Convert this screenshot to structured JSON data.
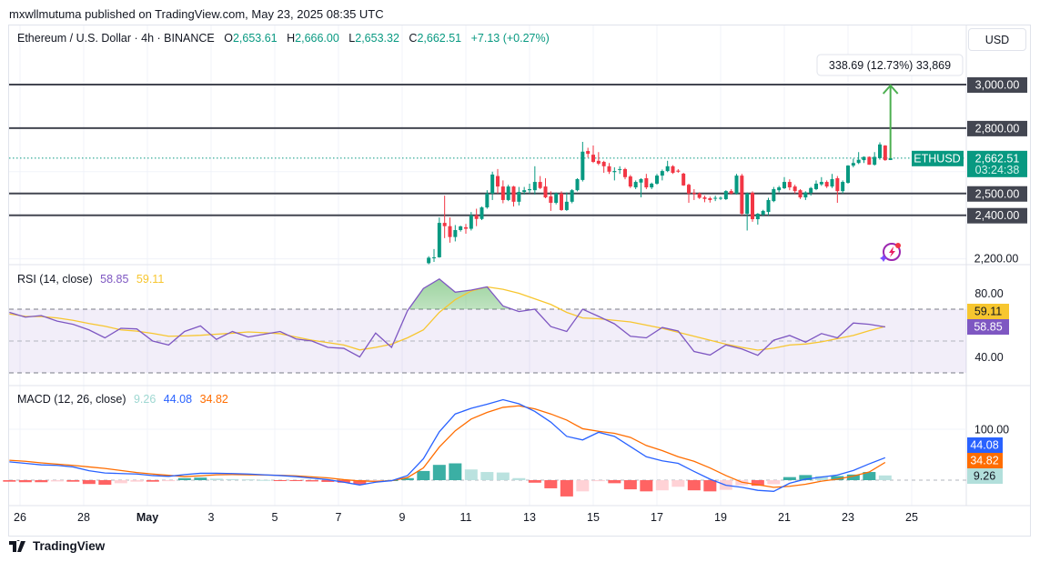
{
  "header": {
    "published": "mxwllmutuma published on TradingView.com, May 23, 2025 08:35 UTC",
    "symbol_desc": "Ethereum / U.S. Dollar · 4h · BINANCE",
    "o_label": "O",
    "o": "2,653.61",
    "h_label": "H",
    "h": "2,666.00",
    "l_label": "L",
    "l": "2,653.32",
    "c_label": "C",
    "c": "2,662.51",
    "change": "+7.13 (+0.27%)",
    "currency_button": "USD"
  },
  "footer": {
    "brand": "TradingView"
  },
  "colors": {
    "up": "#089981",
    "down": "#f23645",
    "level_line": "#434651",
    "rsi": "#7e57c2",
    "rsi_ma": "#f7c62f",
    "macd": "#2962ff",
    "signal": "#ff6d00",
    "hist_up_strong": "#26a69a",
    "hist_up_weak": "#b2dfdb",
    "hist_down_strong": "#ff5252",
    "hist_down_weak": "#ffcdd2"
  },
  "chart_data": {
    "type": "candlestick",
    "price_axis": {
      "ticks": [
        {
          "value": 2200,
          "label": "2,200.00"
        }
      ]
    },
    "horizontal_levels": [
      {
        "value": 3000,
        "label": "3,000.00"
      },
      {
        "value": 2800,
        "label": "2,800.00"
      },
      {
        "value": 2500,
        "label": "2,500.00"
      },
      {
        "value": 2400,
        "label": "2,400.00"
      }
    ],
    "last_price": {
      "value": 2662.51,
      "symbol": "ETHUSD",
      "label": "2,662.51",
      "countdown": "03:24:38"
    },
    "measure": {
      "from": 2661.31,
      "to": 3000,
      "label": "338.69 (12.73%) 33,869"
    },
    "x_ticks": [
      "26",
      "28",
      "May",
      "3",
      "5",
      "7",
      "9",
      "11",
      "13",
      "15",
      "17",
      "19",
      "21",
      "23",
      "25"
    ],
    "x_tick_start": "2025-04-26 00:00",
    "x_tick_step_days": 2,
    "candles": {
      "start": "2025-05-08 20:00",
      "interval_hours": 4,
      "ohlc": [
        [
          2180,
          2212,
          2175,
          2205
        ],
        [
          2205,
          2245,
          2186,
          2207
        ],
        [
          2207,
          2390,
          2205,
          2365
        ],
        [
          2365,
          2490,
          2295,
          2350
        ],
        [
          2350,
          2390,
          2274,
          2300
        ],
        [
          2300,
          2355,
          2280,
          2332
        ],
        [
          2332,
          2352,
          2325,
          2349
        ],
        [
          2345,
          2360,
          2315,
          2338
        ],
        [
          2338,
          2415,
          2330,
          2400
        ],
        [
          2400,
          2430,
          2350,
          2383
        ],
        [
          2383,
          2440,
          2378,
          2436
        ],
        [
          2436,
          2515,
          2430,
          2500
        ],
        [
          2500,
          2600,
          2470,
          2587
        ],
        [
          2580,
          2612,
          2500,
          2532
        ],
        [
          2532,
          2560,
          2455,
          2470
        ],
        [
          2470,
          2540,
          2465,
          2532
        ],
        [
          2532,
          2535,
          2440,
          2462
        ],
        [
          2462,
          2530,
          2445,
          2507
        ],
        [
          2507,
          2530,
          2495,
          2515
        ],
        [
          2515,
          2545,
          2500,
          2520
        ],
        [
          2515,
          2625,
          2495,
          2553
        ],
        [
          2553,
          2580,
          2520,
          2525
        ],
        [
          2532,
          2570,
          2478,
          2482
        ],
        [
          2487,
          2510,
          2420,
          2457
        ],
        [
          2457,
          2505,
          2450,
          2500
        ],
        [
          2500,
          2510,
          2420,
          2424
        ],
        [
          2424,
          2505,
          2420,
          2462
        ],
        [
          2462,
          2520,
          2455,
          2515
        ],
        [
          2515,
          2570,
          2510,
          2566
        ],
        [
          2562,
          2737,
          2555,
          2692
        ],
        [
          2695,
          2710,
          2665,
          2682
        ],
        [
          2678,
          2720,
          2640,
          2645
        ],
        [
          2650,
          2690,
          2630,
          2637
        ],
        [
          2645,
          2650,
          2595,
          2625
        ],
        [
          2625,
          2640,
          2590,
          2600
        ],
        [
          2598,
          2620,
          2560,
          2603
        ],
        [
          2608,
          2625,
          2590,
          2612
        ],
        [
          2612,
          2618,
          2565,
          2575
        ],
        [
          2578,
          2585,
          2525,
          2532
        ],
        [
          2528,
          2560,
          2520,
          2553
        ],
        [
          2550,
          2570,
          2482,
          2566
        ],
        [
          2570,
          2590,
          2520,
          2528
        ],
        [
          2528,
          2550,
          2520,
          2545
        ],
        [
          2545,
          2590,
          2540,
          2582
        ],
        [
          2582,
          2610,
          2560,
          2603
        ],
        [
          2603,
          2650,
          2598,
          2625
        ],
        [
          2625,
          2630,
          2590,
          2595
        ],
        [
          2605,
          2612,
          2595,
          2600
        ],
        [
          2591,
          2595,
          2535,
          2537
        ],
        [
          2540,
          2545,
          2457,
          2500
        ],
        [
          2503,
          2520,
          2470,
          2498
        ],
        [
          2500,
          2505,
          2475,
          2480
        ],
        [
          2482,
          2490,
          2460,
          2475
        ],
        [
          2478,
          2485,
          2458,
          2470
        ],
        [
          2476,
          2490,
          2465,
          2480
        ],
        [
          2476,
          2486,
          2470,
          2480
        ],
        [
          2474,
          2515,
          2470,
          2511
        ],
        [
          2511,
          2520,
          2495,
          2500
        ],
        [
          2500,
          2590,
          2495,
          2582
        ],
        [
          2582,
          2590,
          2400,
          2407
        ],
        [
          2407,
          2505,
          2330,
          2500
        ],
        [
          2503,
          2510,
          2370,
          2382
        ],
        [
          2382,
          2410,
          2357,
          2407
        ],
        [
          2403,
          2425,
          2395,
          2420
        ],
        [
          2415,
          2480,
          2400,
          2470
        ],
        [
          2465,
          2530,
          2460,
          2520
        ],
        [
          2515,
          2535,
          2505,
          2528
        ],
        [
          2524,
          2575,
          2520,
          2553
        ],
        [
          2553,
          2565,
          2515,
          2528
        ],
        [
          2532,
          2540,
          2500,
          2511
        ],
        [
          2515,
          2520,
          2475,
          2482
        ],
        [
          2482,
          2510,
          2470,
          2505
        ],
        [
          2503,
          2530,
          2490,
          2525
        ],
        [
          2520,
          2560,
          2515,
          2545
        ],
        [
          2542,
          2575,
          2535,
          2553
        ],
        [
          2553,
          2560,
          2525,
          2532
        ],
        [
          2532,
          2590,
          2525,
          2566
        ],
        [
          2570,
          2580,
          2457,
          2511
        ],
        [
          2511,
          2560,
          2500,
          2553
        ],
        [
          2549,
          2630,
          2545,
          2628
        ],
        [
          2628,
          2660,
          2620,
          2640
        ],
        [
          2640,
          2690,
          2635,
          2655
        ],
        [
          2653,
          2670,
          2640,
          2668
        ],
        [
          2668,
          2670,
          2632,
          2632
        ],
        [
          2632,
          2690,
          2628,
          2668
        ],
        [
          2662,
          2735,
          2655,
          2725
        ],
        [
          2720,
          2722,
          2650,
          2653
        ],
        [
          2653.61,
          2666,
          2653.32,
          2662.51
        ]
      ]
    },
    "rsi": {
      "label": "RSI (14, close)",
      "value": "58.85",
      "ma_value": "59.11",
      "axis_ticks": [
        {
          "value": 80,
          "label": "80.00"
        },
        {
          "value": 40,
          "label": "40.00"
        }
      ],
      "bands": {
        "upper": 70,
        "middle": 50,
        "lower": 30
      },
      "start": "2025-04-25 16:00",
      "interval_hours": 12,
      "rsi": [
        68,
        65,
        66,
        62.5,
        60.5,
        57,
        52,
        58,
        57.6,
        50,
        47.5,
        56,
        59.5,
        51,
        56,
        52.5,
        54.3,
        56,
        51.3,
        50,
        46,
        45.4,
        40,
        55,
        46,
        69,
        83,
        89,
        80.7,
        82,
        84,
        72,
        68.5,
        70,
        59.1,
        56,
        70,
        65.5,
        60.8,
        53,
        52,
        58.5,
        56.3,
        43.4,
        41.2,
        47.5,
        45,
        41,
        50.5,
        53.5,
        49.3,
        54.7,
        52,
        61.3,
        60.5,
        58.85
      ],
      "ma": [
        67,
        65.5,
        65.4,
        64.5,
        63,
        61,
        59.3,
        57,
        56.2,
        54.8,
        53,
        53.2,
        53.6,
        54.3,
        54.9,
        55.7,
        55.2,
        54.6,
        52.5,
        50.5,
        49,
        47.5,
        44.4,
        46,
        48,
        52,
        57,
        68,
        76,
        81.4,
        84,
        82.5,
        80,
        76.5,
        73,
        68,
        64.5,
        64,
        63,
        62,
        60,
        58,
        55.5,
        53,
        50.5,
        48,
        46,
        44.3,
        45.5,
        47.5,
        48.1,
        49.5,
        51.5,
        53.5,
        56.5,
        59.11
      ]
    },
    "macd": {
      "label": "MACD (12, 26, close)",
      "hist_value": "9.26",
      "macd_value": "44.08",
      "signal_value": "34.82",
      "axis_ticks": [
        {
          "value": 100,
          "label": "100.00"
        }
      ],
      "start": "2025-04-25 16:00",
      "interval_hours": 12,
      "macd": [
        36,
        33,
        30,
        29,
        26,
        18.5,
        14,
        13,
        12,
        9,
        7.5,
        11,
        13.5,
        13.5,
        13,
        12,
        10.5,
        9,
        7,
        4,
        1,
        -4,
        -9.5,
        -4,
        -1,
        9,
        42,
        95,
        130,
        141,
        149,
        158,
        150,
        135,
        114,
        86,
        79,
        94,
        86,
        66,
        46,
        38,
        33,
        17,
        2,
        -10,
        -14,
        -20,
        -22,
        -6,
        2,
        6,
        10,
        19,
        32,
        44.08
      ],
      "signal": [
        39,
        37,
        34,
        31.5,
        29,
        26,
        23,
        19,
        15,
        12,
        9.5,
        7,
        8.5,
        10.5,
        11,
        10.5,
        10,
        9.5,
        8.5,
        6.5,
        4.5,
        1,
        -1.5,
        -2.5,
        -1,
        5,
        24,
        65,
        97,
        120,
        133,
        143,
        146,
        140,
        130,
        118,
        101,
        96,
        92,
        84,
        68,
        58,
        46,
        37,
        24,
        9,
        -4,
        -9,
        -14,
        -12,
        -8,
        -2,
        2,
        8,
        16,
        34.82
      ]
    }
  }
}
